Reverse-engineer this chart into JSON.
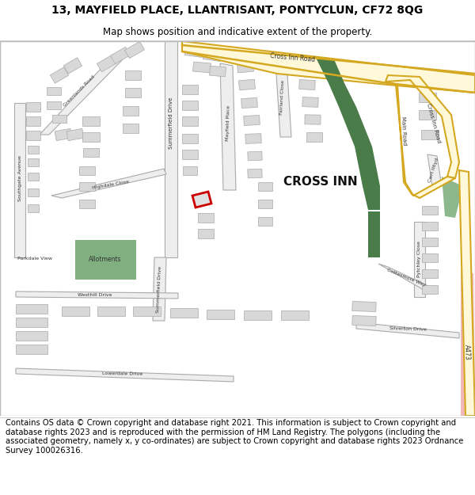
{
  "title": "13, MAYFIELD PLACE, LLANTRISANT, PONTYCLUN, CF72 8QG",
  "subtitle": "Map shows position and indicative extent of the property.",
  "footer": "Contains OS data © Crown copyright and database right 2021. This information is subject to Crown copyright and database rights 2023 and is reproduced with the permission of HM Land Registry. The polygons (including the associated geometry, namely x, y co-ordinates) are subject to Crown copyright and database rights 2023 Ordnance Survey 100026316.",
  "title_fontsize": 10,
  "subtitle_fontsize": 8.5,
  "footer_fontsize": 7.2,
  "map_bg": "#f2f2f2",
  "road_fill": "#fff9d9",
  "road_stroke": "#d4a820",
  "building_fill": "#d8d8d8",
  "building_stroke": "#aaaaaa",
  "green_dark": "#4a7c4a",
  "green_light": "#8db88d",
  "red_box_color": "#cc0000",
  "pink_fill": "#f0b8b8",
  "plot_bg": "#ffffff",
  "border_color": "#bbbbbb",
  "text_color": "#333333"
}
